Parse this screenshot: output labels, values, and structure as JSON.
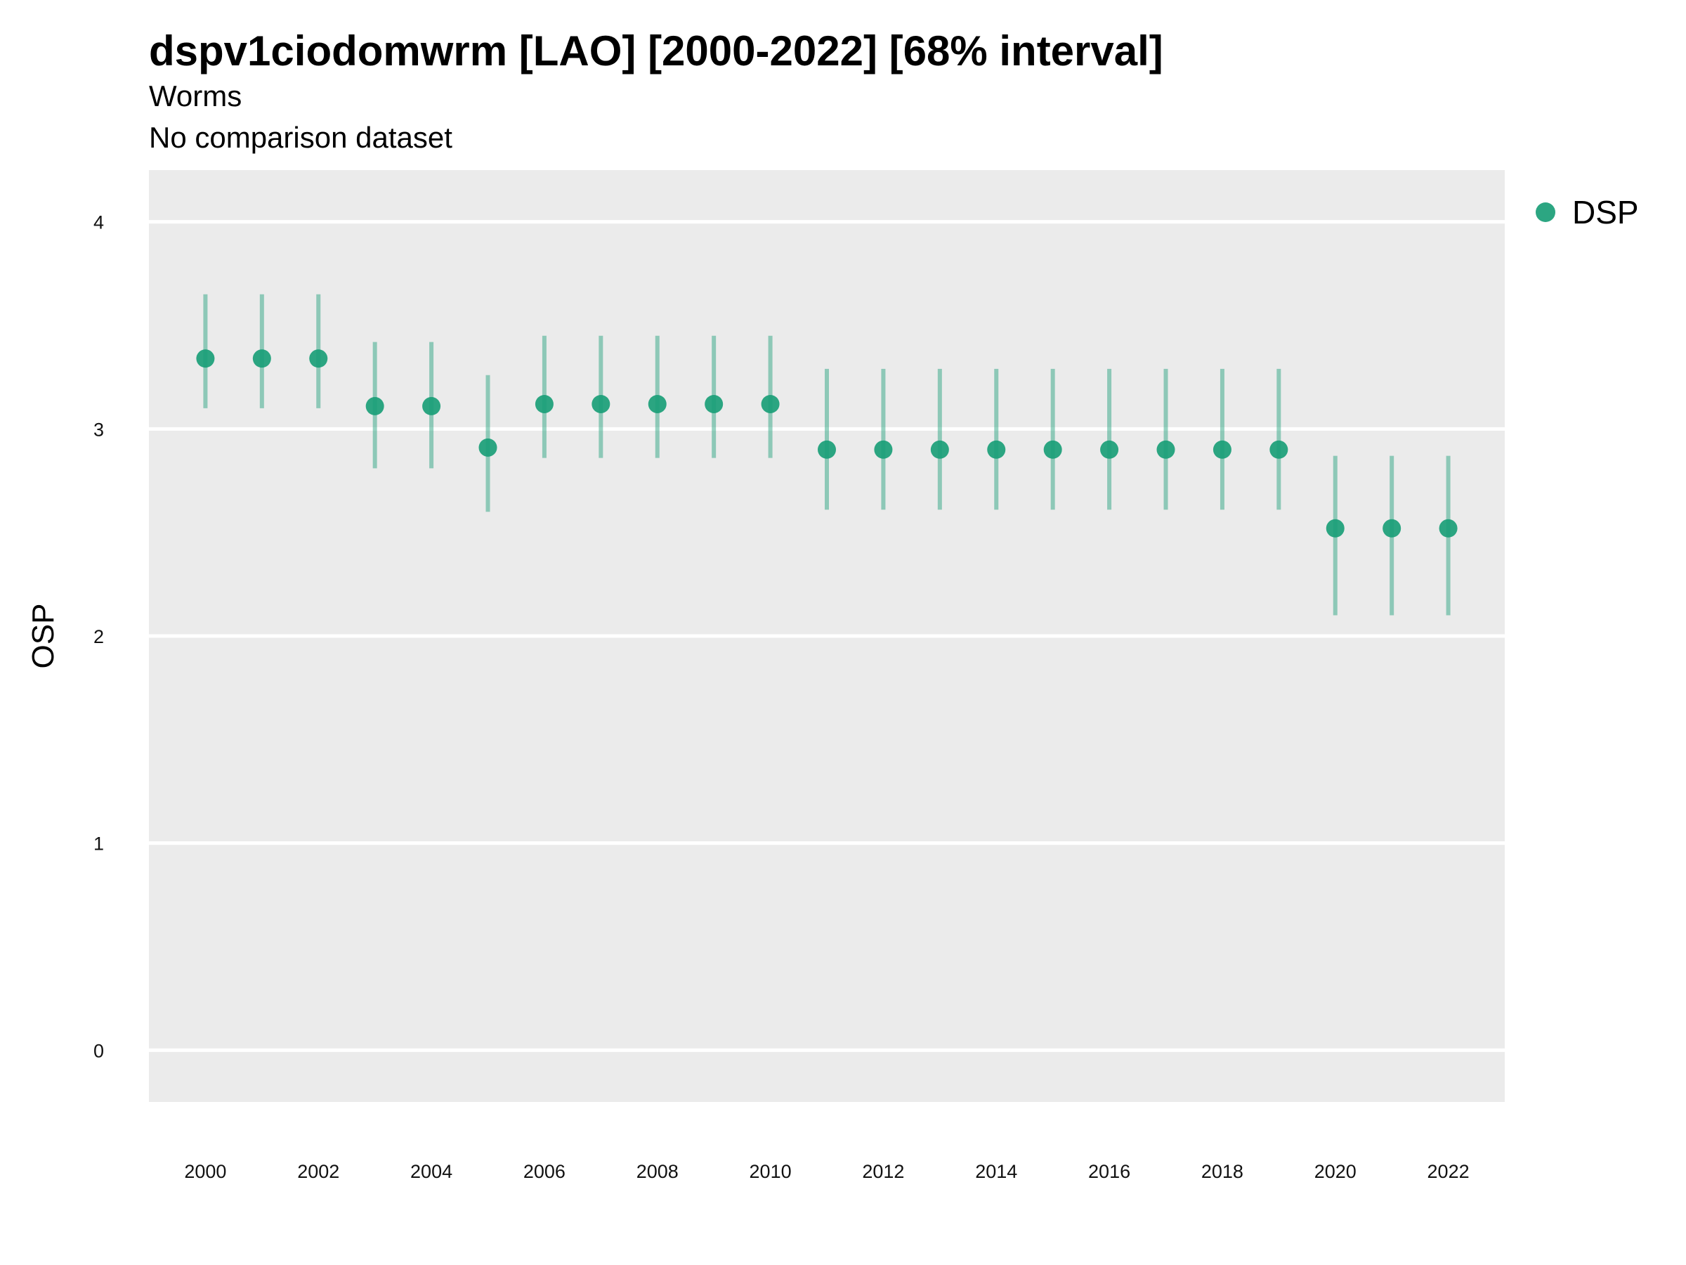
{
  "chart_data": {
    "type": "scatter",
    "title": "dspv1ciodomwrm [LAO] [2000-2022] [68% interval]",
    "subtitle": "Worms",
    "caption": "No comparison dataset",
    "ylabel": "OSP",
    "xlabel": "",
    "ylim": [
      -0.25,
      4.25
    ],
    "xlim": [
      1999,
      2023
    ],
    "yticks": [
      0,
      1,
      2,
      3,
      4
    ],
    "xticks": [
      2000,
      2002,
      2004,
      2006,
      2008,
      2010,
      2012,
      2014,
      2016,
      2018,
      2020,
      2022
    ],
    "grid": true,
    "legend_position": "right-top",
    "series": [
      {
        "name": "DSP",
        "color": "#1a9e77",
        "x": [
          2000,
          2001,
          2002,
          2003,
          2004,
          2005,
          2006,
          2007,
          2008,
          2009,
          2010,
          2011,
          2012,
          2013,
          2014,
          2015,
          2016,
          2017,
          2018,
          2019,
          2020,
          2021,
          2022
        ],
        "y": [
          3.34,
          3.34,
          3.34,
          3.11,
          3.11,
          2.91,
          3.12,
          3.12,
          3.12,
          3.12,
          3.12,
          2.9,
          2.9,
          2.9,
          2.9,
          2.9,
          2.9,
          2.9,
          2.9,
          2.9,
          2.52,
          2.52,
          2.52
        ],
        "low": [
          3.1,
          3.1,
          3.1,
          2.81,
          2.81,
          2.6,
          2.86,
          2.86,
          2.86,
          2.86,
          2.86,
          2.61,
          2.61,
          2.61,
          2.61,
          2.61,
          2.61,
          2.61,
          2.61,
          2.61,
          2.1,
          2.1,
          2.1
        ],
        "high": [
          3.65,
          3.65,
          3.65,
          3.42,
          3.42,
          3.26,
          3.45,
          3.45,
          3.45,
          3.45,
          3.45,
          3.29,
          3.29,
          3.29,
          3.29,
          3.29,
          3.29,
          3.29,
          3.29,
          3.29,
          2.87,
          2.87,
          2.87
        ]
      }
    ]
  }
}
